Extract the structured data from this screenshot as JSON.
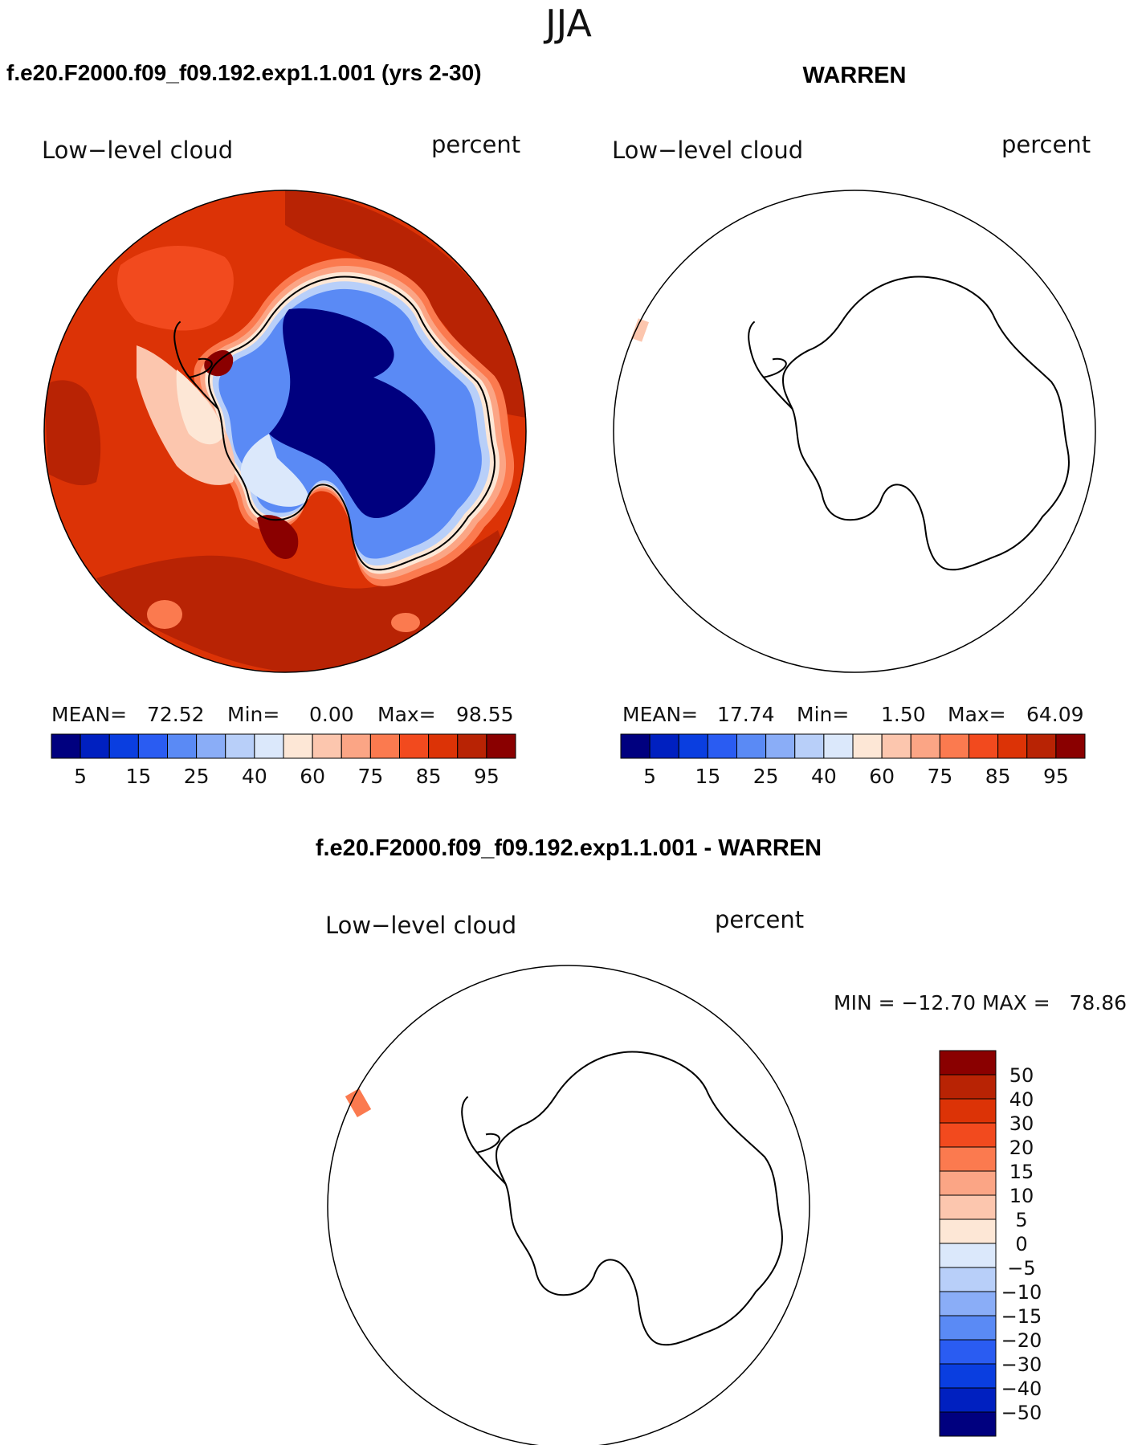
{
  "season": "JJA",
  "panels": [
    {
      "title": "f.e20.F2000.f09_f09.192.exp1.1.001 (yrs 2-30)",
      "variable": "Low−level cloud",
      "units": "percent",
      "mean_label": "MEAN=",
      "mean": "72.52",
      "min_label": "Min=",
      "min": "0.00",
      "max_label": "Max=",
      "max": "98.55"
    },
    {
      "title": "WARREN",
      "variable": "Low−level cloud",
      "units": "percent",
      "mean_label": "MEAN=",
      "mean": "17.74",
      "min_label": "Min=",
      "min": "1.50",
      "max_label": "Max=",
      "max": "64.09"
    }
  ],
  "diff_panel": {
    "title": "f.e20.F2000.f09_f09.192.exp1.1.001 - WARREN",
    "variable": "Low−level cloud",
    "units": "percent",
    "minmax_text": "MIN = −12.70 MAX =   78.86"
  },
  "colorbar": {
    "colors": [
      "#00007f",
      "#0020c0",
      "#0a3ee0",
      "#2a5cf2",
      "#5a8af5",
      "#8aadf7",
      "#b8cff9",
      "#dbe8fb",
      "#fde7d6",
      "#fcc6ae",
      "#fba585",
      "#fb7a4f",
      "#f24a1e",
      "#dc3306",
      "#b82304",
      "#8a0000"
    ],
    "tick_labels": [
      "5",
      "15",
      "25",
      "40",
      "60",
      "75",
      "85",
      "95"
    ]
  },
  "diff_colorbar": {
    "colors": [
      "#8a0000",
      "#b82304",
      "#dc3306",
      "#f24a1e",
      "#fb7a4f",
      "#fba585",
      "#fcc6ae",
      "#fde7d6",
      "#dbe8fb",
      "#b8cff9",
      "#8aadf7",
      "#5a8af5",
      "#2a5cf2",
      "#0a3ee0",
      "#0020c0",
      "#00007f"
    ],
    "tick_labels": [
      "50",
      "40",
      "30",
      "20",
      "15",
      "10",
      "5",
      "0",
      "−5",
      "−10",
      "−15",
      "−20",
      "−30",
      "−40",
      "−50"
    ]
  },
  "colors": {
    "deep_red": "#b82304",
    "orange_red": "#dc3306",
    "ice_blue": "#00007f",
    "coast_line": "#000000"
  }
}
